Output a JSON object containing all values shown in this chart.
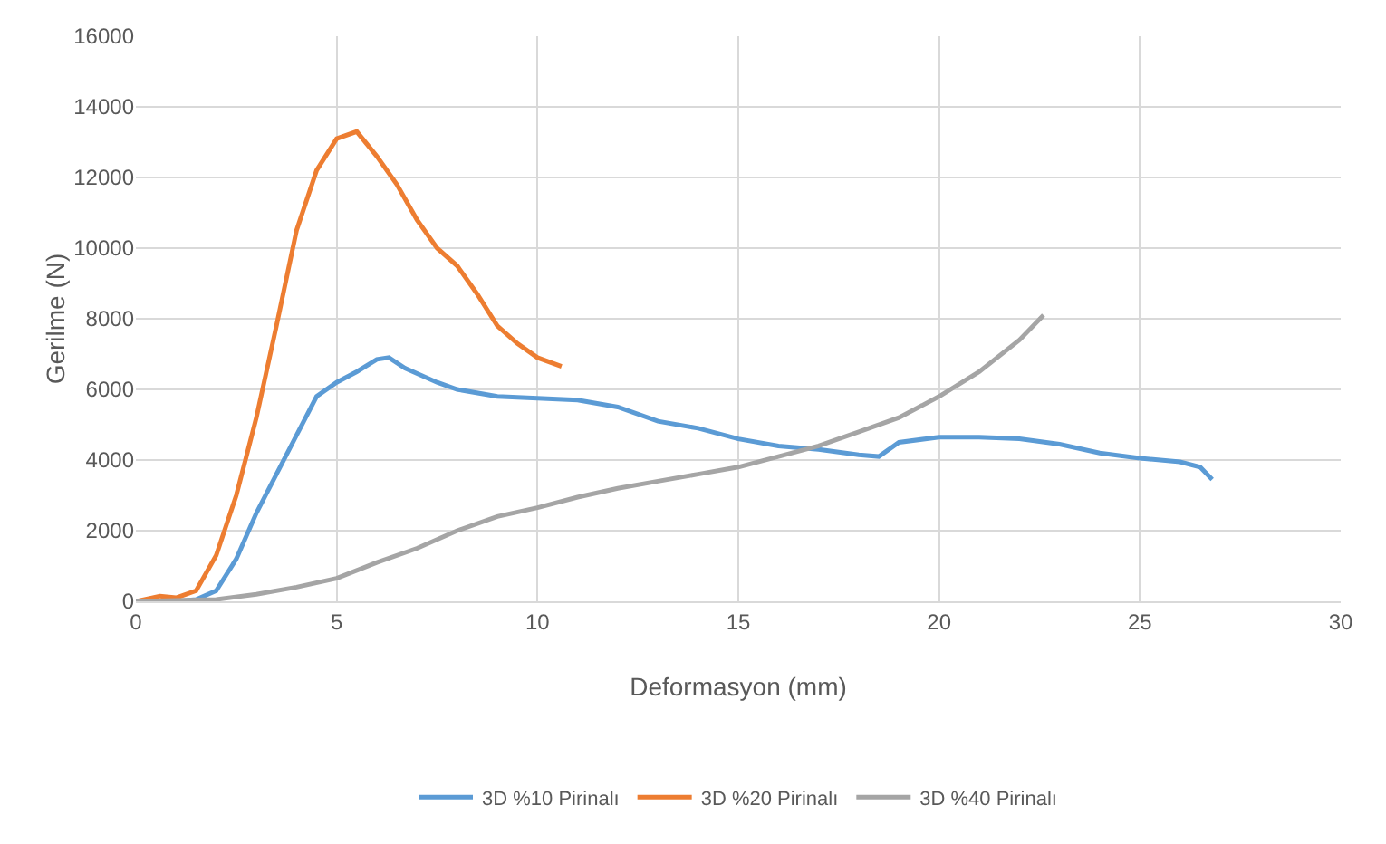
{
  "chart_data": {
    "type": "line",
    "xlabel": "Deformasyon (mm)",
    "ylabel": "Gerilme (N)",
    "xlim": [
      0,
      30
    ],
    "xticks": [
      0,
      5,
      10,
      15,
      20,
      25,
      30
    ],
    "ylim": [
      0,
      16000
    ],
    "yticks": [
      0,
      2000,
      4000,
      6000,
      8000,
      10000,
      12000,
      14000,
      16000
    ],
    "grid": true,
    "legend": "bottom",
    "marker": "none",
    "line_style": "solid",
    "series": [
      {
        "name": "3D %10 Pirinalı",
        "color": "#5b9bd5",
        "x": [
          0,
          1,
          1.5,
          2,
          2.5,
          3,
          3.5,
          4,
          4.5,
          5,
          5.5,
          6,
          6.3,
          6.7,
          7.5,
          8,
          9,
          10,
          11,
          12,
          13,
          14,
          15,
          16,
          17,
          18,
          18.5,
          19,
          20,
          21,
          22,
          23,
          24,
          25,
          26,
          26.5,
          26.8
        ],
        "values": [
          0,
          0,
          50,
          300,
          1200,
          2500,
          3600,
          4700,
          5800,
          6200,
          6500,
          6850,
          6900,
          6600,
          6200,
          6000,
          5800,
          5750,
          5700,
          5500,
          5100,
          4900,
          4600,
          4400,
          4300,
          4150,
          4100,
          4500,
          4650,
          4650,
          4600,
          4450,
          4200,
          4050,
          3950,
          3800,
          3450
        ]
      },
      {
        "name": "3D %20 Pirinalı",
        "color": "#ed7d31",
        "x": [
          0,
          0.6,
          1,
          1.5,
          2,
          2.5,
          3,
          3.5,
          4,
          4.5,
          5,
          5.5,
          6,
          6.5,
          7,
          7.5,
          8,
          8.5,
          9,
          9.5,
          10,
          10.6
        ],
        "values": [
          0,
          150,
          100,
          300,
          1300,
          3000,
          5200,
          7800,
          10500,
          12200,
          13100,
          13300,
          12600,
          11800,
          10800,
          10000,
          9500,
          8700,
          7800,
          7300,
          6900,
          6650
        ]
      },
      {
        "name": "3D %40 Pirinalı",
        "color": "#a5a5a5",
        "x": [
          0,
          2,
          3,
          4,
          5,
          6,
          7,
          8,
          9,
          10,
          11,
          12,
          13,
          14,
          15,
          16,
          17,
          18,
          19,
          20,
          21,
          22,
          22.6
        ],
        "values": [
          0,
          50,
          200,
          400,
          650,
          1100,
          1500,
          2000,
          2400,
          2650,
          2950,
          3200,
          3400,
          3600,
          3800,
          4100,
          4400,
          4800,
          5200,
          5800,
          6500,
          7400,
          8100
        ]
      }
    ]
  }
}
